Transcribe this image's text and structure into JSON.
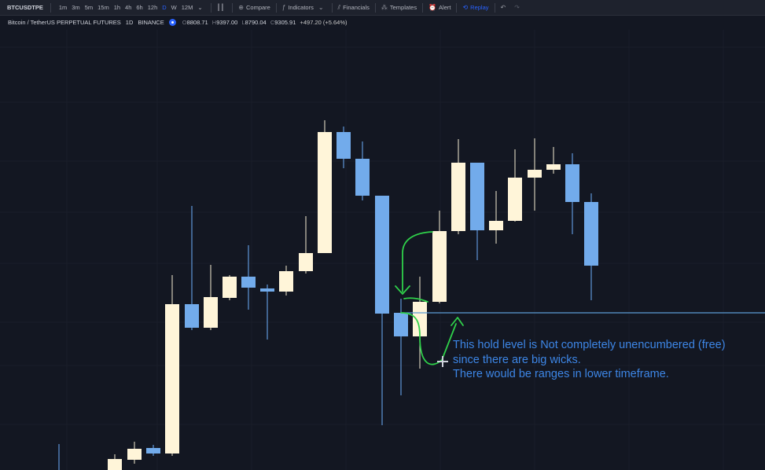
{
  "toolbar": {
    "symbol": "BTCUSDTPE",
    "intervals": [
      "1m",
      "3m",
      "5m",
      "15m",
      "1h",
      "4h",
      "6h",
      "12h",
      "D",
      "W",
      "12M"
    ],
    "active_interval": "D",
    "compare": "Compare",
    "indicators": "Indicators",
    "financials": "Financials",
    "templates": "Templates",
    "alert": "Alert",
    "replay": "Replay"
  },
  "legend": {
    "title": "Bitcoin / TetherUS PERPETUAL FUTURES",
    "interval": "1D",
    "exchange": "BINANCE",
    "o_label": "O",
    "o": "8808.71",
    "h_label": "H",
    "h": "9397.00",
    "l_label": "L",
    "l": "8790.04",
    "c_label": "C",
    "c": "9305.91",
    "change": "+497.20 (+5.64%)"
  },
  "colors": {
    "background": "#131722",
    "bull": "#fff5d9",
    "bear": "#72abeb",
    "wick_bull": "#cfc9b6",
    "wick_bear": "#5f96d8",
    "level_line": "#5b9bd5",
    "arrow": "#2fd04a",
    "note": "#3d86e6"
  },
  "candles": [
    {
      "o": 0.0,
      "h": 0.0,
      "l": 0.0,
      "c": 0.0
    },
    {
      "o": 0.0,
      "h": 0.0,
      "l": 0.0,
      "c": 0.0
    }
  ],
  "annotation": {
    "lines": [
      "This hold level is Not completely unencumbered (free)",
      "since there are big wicks.",
      "There would be ranges in lower timeframe."
    ]
  }
}
